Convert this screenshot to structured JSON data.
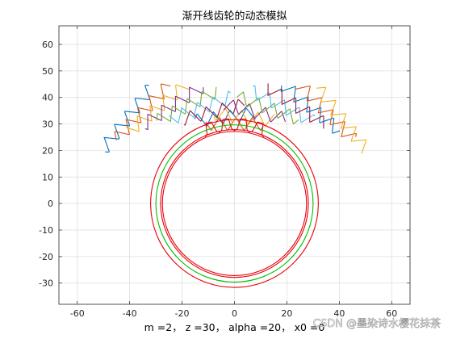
{
  "chart_data": {
    "type": "line",
    "title": "渐开线齿轮的动态模拟",
    "xlabel": "m =2， z =30， alpha =20， x0 =0",
    "ylabel": "",
    "xlim": [
      -67,
      67
    ],
    "ylim": [
      -38,
      67
    ],
    "xticks": [
      -60,
      -40,
      -20,
      0,
      20,
      40,
      60
    ],
    "yticks": [
      -30,
      -20,
      -10,
      0,
      10,
      20,
      30,
      40,
      50,
      60
    ],
    "x_tick_labels": [
      "-60",
      "-40",
      "-20",
      "0",
      "20",
      "40",
      "60"
    ],
    "y_tick_labels": [
      "-30",
      "-20",
      "-10",
      "0",
      "10",
      "20",
      "30",
      "40",
      "50",
      "60"
    ],
    "grid": true,
    "legend": "none",
    "gear": {
      "module": 2,
      "teeth": 30,
      "pressure_angle_deg": 20,
      "shift_coefficient": 0,
      "circles": [
        {
          "name": "addendum",
          "radius": 32,
          "color": "#e8000b"
        },
        {
          "name": "pitch",
          "radius": 30,
          "color": "#00c000"
        },
        {
          "name": "base",
          "radius": 28.19,
          "color": "#e8000b"
        },
        {
          "name": "dedendum",
          "radius": 27.5,
          "color": "#e8000b"
        }
      ],
      "tooth_angle_range_deg": [
        72,
        108
      ]
    },
    "rack": {
      "positions": 17,
      "pitch": 6.2832,
      "half_depth": 2.5,
      "arc_radius_range": [
        30,
        52
      ],
      "arc_half_angle_range_deg": [
        10,
        52
      ]
    },
    "line_colors": [
      "#0072bd",
      "#d95319",
      "#edb120",
      "#7e2f8e",
      "#77ac30",
      "#4dbeee",
      "#a2142f"
    ]
  },
  "watermark": "CSDN @墨染诗水樱花抹茶"
}
